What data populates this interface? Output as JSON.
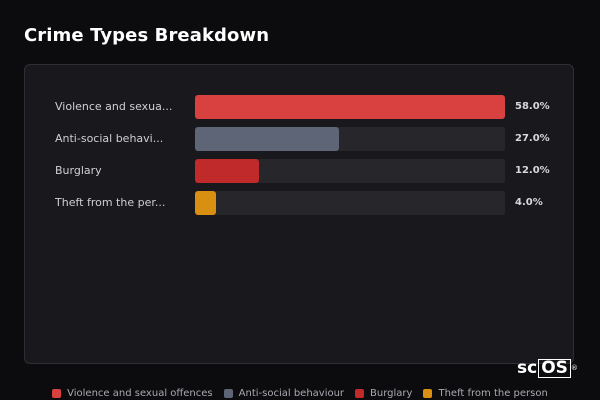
{
  "header": {
    "title": "Crime Types Breakdown"
  },
  "chart_data": {
    "type": "bar",
    "orientation": "horizontal",
    "categories": [
      "Violence and sexual offences",
      "Anti-social behaviour",
      "Burglary",
      "Theft from the person"
    ],
    "display_labels": [
      "Violence and sexua...",
      "Anti-social behavi...",
      "Burglary",
      "Theft from the per..."
    ],
    "values": [
      58.0,
      27.0,
      12.0,
      4.0
    ],
    "value_labels": [
      "58.0%",
      "27.0%",
      "12.0%",
      "4.0%"
    ],
    "xlim": [
      0,
      58
    ],
    "colors": [
      "#d94141",
      "#5d6576",
      "#c02a2a",
      "#d99012"
    ],
    "legend_position": "bottom-center",
    "grid": false
  },
  "legend": [
    {
      "label": "Violence and sexual offences",
      "color": "#d94141"
    },
    {
      "label": "Anti-social behaviour",
      "color": "#5d6576"
    },
    {
      "label": "Burglary",
      "color": "#c02a2a"
    },
    {
      "label": "Theft from the person",
      "color": "#d99012"
    }
  ],
  "watermark": {
    "text_a": "sc",
    "text_b": "OS",
    "mark": "®"
  }
}
